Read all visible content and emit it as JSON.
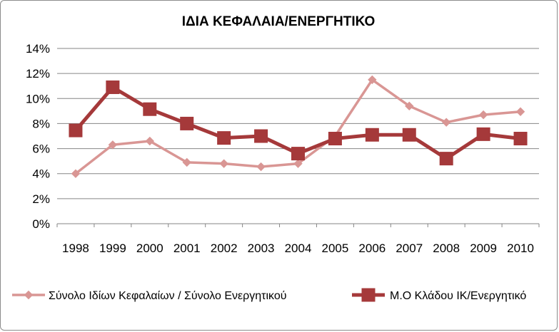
{
  "chart_data": {
    "type": "line",
    "title": "ΙΔΙΑ ΚΕΦΑΛΑΙΑ/ΕΝΕΡΓΗΤΙΚΟ",
    "xlabel": "",
    "ylabel": "",
    "categories": [
      "1998",
      "1999",
      "2000",
      "2001",
      "2002",
      "2003",
      "2004",
      "2005",
      "2006",
      "2007",
      "2008",
      "2009",
      "2010"
    ],
    "ylim": [
      0,
      14
    ],
    "yticks": [
      0,
      2,
      4,
      6,
      8,
      10,
      12,
      14
    ],
    "ytick_labels": [
      "0%",
      "2%",
      "4%",
      "6%",
      "8%",
      "10%",
      "12%",
      "14%"
    ],
    "grid": true,
    "legend_position": "bottom",
    "series": [
      {
        "name": "Σύνολο Ιδίων Κεφαλαίων / Σύνολο Ενεργητικού",
        "color": "#d99694",
        "marker": "diamond",
        "values": [
          4.0,
          6.3,
          6.6,
          4.9,
          4.8,
          4.55,
          4.8,
          7.0,
          11.5,
          9.4,
          8.1,
          8.7,
          8.95
        ]
      },
      {
        "name": "Μ.Ο Κλάδου ΙΚ/Ενεργητικό",
        "color": "#a5393a",
        "marker": "square",
        "values": [
          7.45,
          10.9,
          9.15,
          8.0,
          6.85,
          7.0,
          5.6,
          6.8,
          7.1,
          7.1,
          5.2,
          7.15,
          6.8
        ]
      }
    ]
  }
}
